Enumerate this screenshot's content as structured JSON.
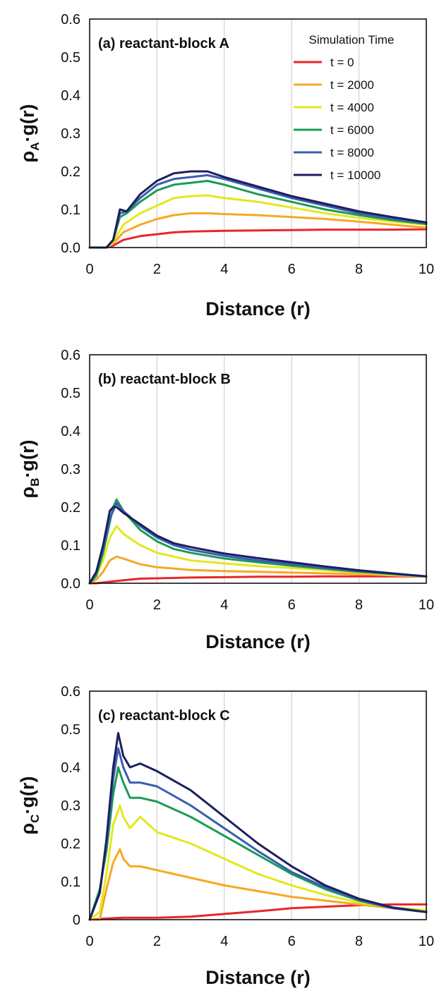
{
  "legend": {
    "title": "Simulation Time",
    "entries": [
      {
        "label": "t = 0",
        "color": "#e8262a"
      },
      {
        "label": "t = 2000",
        "color": "#f7a823"
      },
      {
        "label": "t = 4000",
        "color": "#e3e81c"
      },
      {
        "label": "t = 6000",
        "color": "#1a9c55"
      },
      {
        "label": "t = 8000",
        "color": "#3b5db0"
      },
      {
        "label": "t = 10000",
        "color": "#1c1f5e"
      }
    ]
  },
  "chart_data": [
    {
      "type": "line",
      "panel_label": "(a) reactant-block A",
      "xlabel": "Distance (r)",
      "ylabel": "ρA·g(r)",
      "ylabel_main": "ρ",
      "ylabel_sub": "A",
      "ylabel_rest": "·g(r)",
      "xlim": [
        0,
        10
      ],
      "ylim": [
        0,
        0.6
      ],
      "xticks": [
        0,
        2,
        4,
        6,
        8,
        10
      ],
      "xtick_labels": [
        "0",
        "2",
        "4",
        "6",
        "8",
        "10"
      ],
      "yticks": [
        0,
        0.1,
        0.2,
        0.3,
        0.4,
        0.5,
        0.6
      ],
      "ytick_labels": [
        "0.0",
        "0.1",
        "0.2",
        "0.3",
        "0.4",
        "0.5",
        "0.6"
      ],
      "grid": "vertical",
      "legend": "top-right",
      "series": [
        {
          "name": "t = 0",
          "x": [
            0,
            0.5,
            0.7,
            1.0,
            1.5,
            2.0,
            2.5,
            3.0,
            4.0,
            5.0,
            6.0,
            7.0,
            8.0,
            9.0,
            10.0
          ],
          "y": [
            0,
            0,
            0.005,
            0.02,
            0.03,
            0.035,
            0.04,
            0.042,
            0.044,
            0.045,
            0.046,
            0.047,
            0.047,
            0.047,
            0.048
          ]
        },
        {
          "name": "t = 2000",
          "x": [
            0,
            0.5,
            0.7,
            1.0,
            1.5,
            2.0,
            2.5,
            3.0,
            3.5,
            4.0,
            5.0,
            6.0,
            7.0,
            8.0,
            9.0,
            10.0
          ],
          "y": [
            0,
            0,
            0.01,
            0.04,
            0.06,
            0.075,
            0.085,
            0.09,
            0.09,
            0.088,
            0.085,
            0.08,
            0.075,
            0.068,
            0.06,
            0.052
          ]
        },
        {
          "name": "t = 4000",
          "x": [
            0,
            0.5,
            0.7,
            1.0,
            1.5,
            2.0,
            2.5,
            3.0,
            3.5,
            4.0,
            5.0,
            6.0,
            7.0,
            8.0,
            9.0,
            10.0
          ],
          "y": [
            0,
            0,
            0.015,
            0.06,
            0.09,
            0.11,
            0.13,
            0.135,
            0.137,
            0.13,
            0.12,
            0.105,
            0.09,
            0.078,
            0.068,
            0.06
          ]
        },
        {
          "name": "t = 6000",
          "x": [
            0,
            0.5,
            0.7,
            0.9,
            1.1,
            1.5,
            2.0,
            2.5,
            3.0,
            3.5,
            4.0,
            5.0,
            6.0,
            7.0,
            8.0,
            9.0,
            10.0
          ],
          "y": [
            0,
            0,
            0.02,
            0.08,
            0.09,
            0.12,
            0.15,
            0.165,
            0.17,
            0.175,
            0.165,
            0.14,
            0.12,
            0.1,
            0.085,
            0.072,
            0.062
          ]
        },
        {
          "name": "t = 8000",
          "x": [
            0,
            0.5,
            0.7,
            0.9,
            1.1,
            1.5,
            2.0,
            2.5,
            3.0,
            3.5,
            4.0,
            5.0,
            6.0,
            7.0,
            8.0,
            9.0,
            10.0
          ],
          "y": [
            0,
            0,
            0.02,
            0.09,
            0.095,
            0.13,
            0.165,
            0.18,
            0.185,
            0.19,
            0.18,
            0.155,
            0.13,
            0.11,
            0.09,
            0.076,
            0.064
          ]
        },
        {
          "name": "t = 10000",
          "x": [
            0,
            0.5,
            0.7,
            0.9,
            1.1,
            1.5,
            2.0,
            2.5,
            3.0,
            3.5,
            4.0,
            5.0,
            6.0,
            7.0,
            8.0,
            9.0,
            10.0
          ],
          "y": [
            0,
            0,
            0.02,
            0.1,
            0.095,
            0.14,
            0.175,
            0.195,
            0.2,
            0.2,
            0.185,
            0.16,
            0.135,
            0.115,
            0.095,
            0.08,
            0.066
          ]
        }
      ]
    },
    {
      "type": "line",
      "panel_label": "(b) reactant-block B",
      "xlabel": "Distance (r)",
      "ylabel": "ρB·g(r)",
      "ylabel_main": "ρ",
      "ylabel_sub": "B",
      "ylabel_rest": "·g(r)",
      "xlim": [
        0,
        10
      ],
      "ylim": [
        0,
        0.6
      ],
      "xticks": [
        0,
        2,
        4,
        6,
        8,
        10
      ],
      "xtick_labels": [
        "0",
        "2",
        "4",
        "6",
        "8",
        "10"
      ],
      "yticks": [
        0,
        0.1,
        0.2,
        0.3,
        0.4,
        0.5,
        0.6
      ],
      "ytick_labels": [
        "0.0",
        "0.1",
        "0.2",
        "0.3",
        "0.4",
        "0.5",
        "0.6"
      ],
      "grid": "vertical",
      "series": [
        {
          "name": "t = 0",
          "x": [
            0,
            0.2,
            0.5,
            1.0,
            1.5,
            2.0,
            3.0,
            4.0,
            5.0,
            6.0,
            7.0,
            8.0,
            9.0,
            10.0
          ],
          "y": [
            0,
            0,
            0.003,
            0.008,
            0.012,
            0.013,
            0.015,
            0.016,
            0.017,
            0.017,
            0.018,
            0.018,
            0.018,
            0.018
          ]
        },
        {
          "name": "t = 2000",
          "x": [
            0,
            0.2,
            0.4,
            0.6,
            0.8,
            1.0,
            1.5,
            2.0,
            3.0,
            4.0,
            5.0,
            6.0,
            7.0,
            8.0,
            9.0,
            10.0
          ],
          "y": [
            0,
            0.01,
            0.03,
            0.06,
            0.07,
            0.065,
            0.05,
            0.042,
            0.035,
            0.032,
            0.03,
            0.028,
            0.026,
            0.024,
            0.021,
            0.018
          ]
        },
        {
          "name": "t = 4000",
          "x": [
            0,
            0.2,
            0.4,
            0.6,
            0.8,
            1.0,
            1.5,
            2.0,
            3.0,
            4.0,
            5.0,
            6.0,
            7.0,
            8.0,
            9.0,
            10.0
          ],
          "y": [
            0,
            0.02,
            0.06,
            0.12,
            0.15,
            0.13,
            0.1,
            0.08,
            0.06,
            0.052,
            0.045,
            0.04,
            0.034,
            0.028,
            0.022,
            0.018
          ]
        },
        {
          "name": "t = 6000",
          "x": [
            0,
            0.2,
            0.4,
            0.6,
            0.7,
            0.8,
            1.0,
            1.5,
            2.0,
            2.5,
            3.0,
            4.0,
            5.0,
            6.0,
            7.0,
            8.0,
            9.0,
            10.0
          ],
          "y": [
            0,
            0.02,
            0.08,
            0.16,
            0.2,
            0.22,
            0.19,
            0.14,
            0.11,
            0.09,
            0.08,
            0.065,
            0.055,
            0.046,
            0.038,
            0.03,
            0.024,
            0.018
          ]
        },
        {
          "name": "t = 8000",
          "x": [
            0,
            0.2,
            0.4,
            0.6,
            0.7,
            0.8,
            1.0,
            1.5,
            2.0,
            2.5,
            3.0,
            4.0,
            5.0,
            6.0,
            7.0,
            8.0,
            9.0,
            10.0
          ],
          "y": [
            0,
            0.03,
            0.09,
            0.17,
            0.19,
            0.21,
            0.19,
            0.15,
            0.12,
            0.1,
            0.088,
            0.072,
            0.06,
            0.05,
            0.04,
            0.032,
            0.025,
            0.018
          ]
        },
        {
          "name": "t = 10000",
          "x": [
            0,
            0.2,
            0.4,
            0.6,
            0.7,
            0.8,
            1.0,
            1.5,
            2.0,
            2.5,
            3.0,
            4.0,
            5.0,
            6.0,
            7.0,
            8.0,
            9.0,
            10.0
          ],
          "y": [
            0,
            0.03,
            0.1,
            0.19,
            0.2,
            0.2,
            0.185,
            0.155,
            0.125,
            0.105,
            0.095,
            0.078,
            0.066,
            0.055,
            0.044,
            0.034,
            0.026,
            0.018
          ]
        }
      ]
    },
    {
      "type": "line",
      "panel_label": "(c) reactant-block C",
      "xlabel": "Distance (r)",
      "ylabel": "ρC·g(r)",
      "ylabel_main": "ρ",
      "ylabel_sub": "C",
      "ylabel_rest": "·g(r)",
      "xlim": [
        0,
        10
      ],
      "ylim": [
        0,
        0.6
      ],
      "xticks": [
        0,
        2,
        4,
        6,
        8,
        10
      ],
      "xtick_labels": [
        "0",
        "2",
        "4",
        "6",
        "8",
        "10"
      ],
      "yticks": [
        0,
        0.1,
        0.2,
        0.3,
        0.4,
        0.5,
        0.6
      ],
      "ytick_labels": [
        "0",
        "0.1",
        "0.2",
        "0.3",
        "0.4",
        "0.5",
        "0.6"
      ],
      "grid": "vertical",
      "series": [
        {
          "name": "t = 0",
          "x": [
            0,
            0.5,
            1.0,
            2.0,
            3.0,
            4.0,
            5.0,
            6.0,
            7.0,
            8.0,
            9.0,
            10.0
          ],
          "y": [
            0,
            0.003,
            0.005,
            0.005,
            0.008,
            0.015,
            0.022,
            0.03,
            0.034,
            0.038,
            0.04,
            0.04
          ]
        },
        {
          "name": "t = 2000",
          "x": [
            0,
            0.3,
            0.5,
            0.7,
            0.9,
            1.0,
            1.2,
            1.5,
            2.0,
            3.0,
            4.0,
            5.0,
            6.0,
            7.0,
            8.0,
            9.0,
            10.0
          ],
          "y": [
            0,
            0,
            0.08,
            0.15,
            0.185,
            0.16,
            0.14,
            0.14,
            0.13,
            0.11,
            0.09,
            0.075,
            0.06,
            0.05,
            0.04,
            0.03,
            0.022
          ]
        },
        {
          "name": "t = 4000",
          "x": [
            0,
            0.3,
            0.5,
            0.7,
            0.9,
            1.0,
            1.2,
            1.5,
            2.0,
            3.0,
            4.0,
            5.0,
            6.0,
            7.0,
            8.0,
            9.0,
            10.0
          ],
          "y": [
            0,
            0.02,
            0.12,
            0.25,
            0.3,
            0.27,
            0.24,
            0.27,
            0.23,
            0.2,
            0.16,
            0.12,
            0.09,
            0.065,
            0.045,
            0.032,
            0.025
          ]
        },
        {
          "name": "t = 6000",
          "x": [
            0,
            0.3,
            0.5,
            0.7,
            0.85,
            1.0,
            1.2,
            1.5,
            2.0,
            3.0,
            4.0,
            5.0,
            6.0,
            7.0,
            8.0,
            9.0,
            10.0
          ],
          "y": [
            0,
            0.08,
            0.18,
            0.33,
            0.4,
            0.36,
            0.32,
            0.32,
            0.31,
            0.27,
            0.22,
            0.17,
            0.12,
            0.08,
            0.05,
            0.03,
            0.02
          ]
        },
        {
          "name": "t = 8000",
          "x": [
            0,
            0.3,
            0.5,
            0.7,
            0.85,
            1.0,
            1.2,
            1.5,
            2.0,
            3.0,
            4.0,
            5.0,
            6.0,
            7.0,
            8.0,
            9.0,
            10.0
          ],
          "y": [
            0,
            0.07,
            0.2,
            0.37,
            0.45,
            0.4,
            0.36,
            0.36,
            0.35,
            0.3,
            0.24,
            0.18,
            0.125,
            0.085,
            0.052,
            0.03,
            0.02
          ]
        },
        {
          "name": "t = 10000",
          "x": [
            0,
            0.3,
            0.5,
            0.7,
            0.85,
            1.0,
            1.2,
            1.5,
            2.0,
            3.0,
            4.0,
            5.0,
            6.0,
            7.0,
            8.0,
            9.0,
            10.0
          ],
          "y": [
            0,
            0.07,
            0.21,
            0.4,
            0.49,
            0.43,
            0.4,
            0.41,
            0.39,
            0.34,
            0.27,
            0.2,
            0.14,
            0.09,
            0.055,
            0.032,
            0.02
          ]
        }
      ]
    }
  ]
}
